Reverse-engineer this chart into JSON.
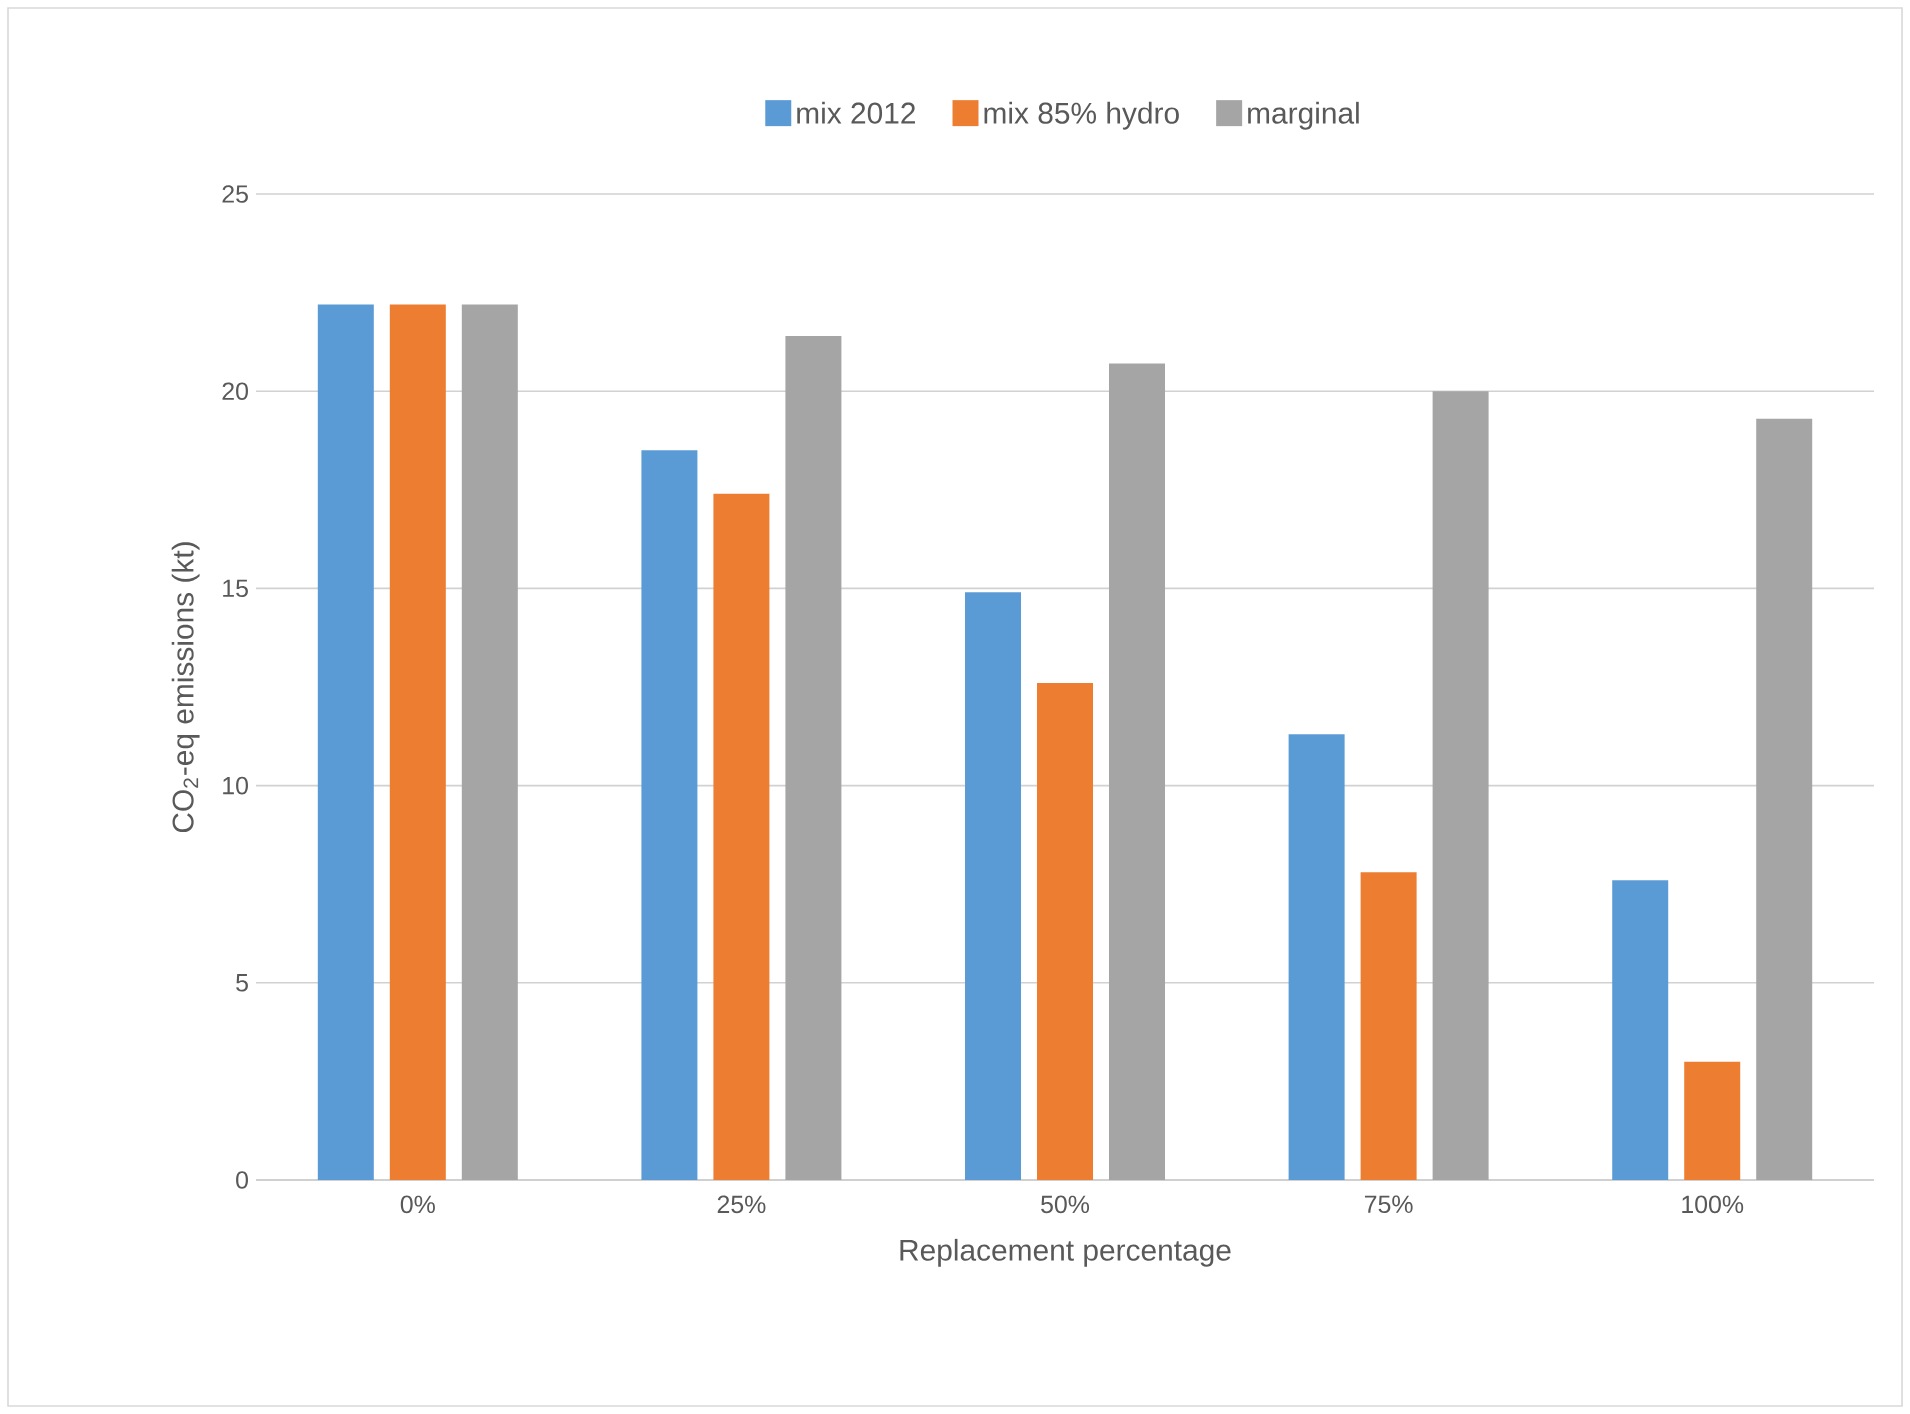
{
  "chart_data": {
    "type": "bar",
    "xlabel": "Replacement percentage",
    "ylabel": "CO$_{2}$-eq emissions (kt)",
    "categories": [
      "0%",
      "25%",
      "50%",
      "75%",
      "100%"
    ],
    "series": [
      {
        "name": "mix 2012",
        "color": "#5b9bd5",
        "values": [
          22.2,
          18.5,
          14.9,
          11.3,
          7.6
        ]
      },
      {
        "name": "mix 85% hydro",
        "color": "#ed7d31",
        "values": [
          22.2,
          17.4,
          12.6,
          7.8,
          3.0
        ]
      },
      {
        "name": "marginal",
        "color": "#a5a5a5",
        "values": [
          22.2,
          21.4,
          20.7,
          20.0,
          19.3
        ]
      }
    ],
    "ylim": [
      0,
      25
    ],
    "yticks": [
      0,
      5,
      10,
      15,
      20,
      25
    ],
    "grid": "y",
    "legend": "top"
  }
}
